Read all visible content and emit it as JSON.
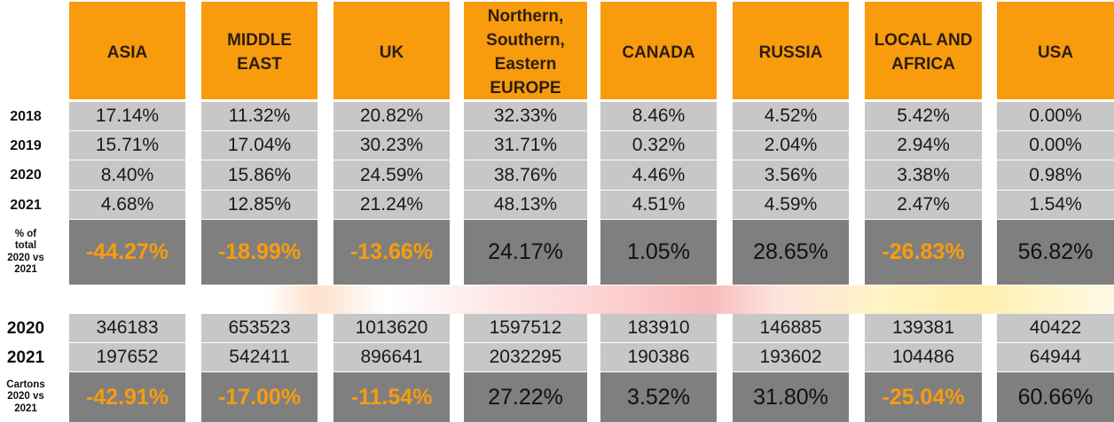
{
  "regions": [
    "ASIA",
    "MIDDLE\nEAST",
    "UK",
    "Northern,\nSouthern,\nEastern\nEUROPE",
    "CANADA",
    "RUSSIA",
    "LOCAL AND\nAFRICA",
    "USA"
  ],
  "share_years": [
    "2018",
    "2019",
    "2020",
    "2021"
  ],
  "change_share_label": "% of\ntotal\n2020 vs\n2021",
  "carton_years": [
    "2020",
    "2021"
  ],
  "change_cartons_label": "Cartons\n2020 vs\n2021",
  "colors": {
    "header": "#f89c0e",
    "light_cell": "#c7c7c7",
    "dark_cell": "#7f7f7f",
    "negative_text": "#f89c0e"
  },
  "chart_data": {
    "type": "table",
    "columns": [
      "ASIA",
      "MIDDLE EAST",
      "UK",
      "Northern, Southern, Eastern EUROPE",
      "CANADA",
      "RUSSIA",
      "LOCAL AND AFRICA",
      "USA"
    ],
    "share_rows": [
      [
        "17.14%",
        "11.32%",
        "20.82%",
        "32.33%",
        "8.46%",
        "4.52%",
        "5.42%",
        "0.00%"
      ],
      [
        "15.71%",
        "17.04%",
        "30.23%",
        "31.71%",
        "0.32%",
        "2.04%",
        "2.94%",
        "0.00%"
      ],
      [
        "8.40%",
        "15.86%",
        "24.59%",
        "38.76%",
        "4.46%",
        "3.56%",
        "3.38%",
        "0.98%"
      ],
      [
        "4.68%",
        "12.85%",
        "21.24%",
        "48.13%",
        "4.51%",
        "4.59%",
        "2.47%",
        "1.54%"
      ]
    ],
    "change_share": [
      "-44.27%",
      "-18.99%",
      "-13.66%",
      "24.17%",
      "1.05%",
      "28.65%",
      "-26.83%",
      "56.82%"
    ],
    "carton_rows": [
      [
        "346183",
        "653523",
        "1013620",
        "1597512",
        "183910",
        "146885",
        "139381",
        "40422"
      ],
      [
        "197652",
        "542411",
        "896641",
        "2032295",
        "190386",
        "193602",
        "104486",
        "64944"
      ]
    ],
    "change_cartons": [
      "-42.91%",
      "-17.00%",
      "-11.54%",
      "27.22%",
      "3.52%",
      "31.80%",
      "-25.04%",
      "60.66%"
    ]
  }
}
